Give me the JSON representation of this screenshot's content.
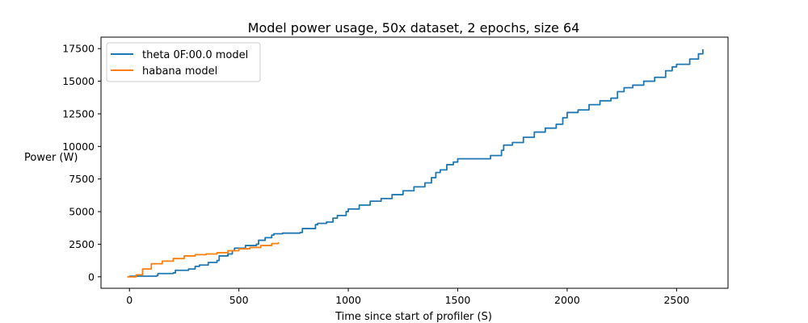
{
  "chart_data": {
    "type": "line",
    "title": "Model power usage, 50x dataset, 2 epochs, size 64",
    "xlabel": "Time since start of profiler (S)",
    "ylabel": "Power (W)",
    "xlim": [
      -130,
      2735
    ],
    "ylim": [
      -880,
      18380
    ],
    "xticks": [
      0,
      500,
      1000,
      1500,
      2000,
      2500
    ],
    "yticks": [
      0,
      2500,
      5000,
      7500,
      10000,
      12500,
      15000,
      17500
    ],
    "legend_position": "upper-left",
    "series": [
      {
        "name": "theta 0F:00.0 model",
        "color": "#1f77b4",
        "x": [
          0,
          125,
          130,
          200,
          210,
          270,
          300,
          320,
          360,
          400,
          410,
          450,
          470,
          480,
          530,
          580,
          590,
          620,
          650,
          660,
          700,
          780,
          790,
          850,
          860,
          900,
          930,
          950,
          990,
          1000,
          1050,
          1100,
          1150,
          1200,
          1250,
          1300,
          1350,
          1380,
          1400,
          1420,
          1450,
          1480,
          1500,
          1520,
          1550,
          1650,
          1700,
          1710,
          1750,
          1800,
          1850,
          1900,
          1950,
          1980,
          2000,
          2050,
          2100,
          2150,
          2200,
          2230,
          2260,
          2300,
          2350,
          2400,
          2450,
          2480,
          2500,
          2560,
          2600,
          2620
        ],
        "y": [
          50,
          100,
          250,
          300,
          500,
          600,
          800,
          900,
          1100,
          1250,
          1600,
          1750,
          2000,
          2200,
          2400,
          2500,
          2800,
          3000,
          3200,
          3300,
          3350,
          3400,
          3700,
          4000,
          4100,
          4200,
          4500,
          4700,
          5000,
          5200,
          5500,
          5800,
          6000,
          6300,
          6600,
          6900,
          7200,
          7600,
          8000,
          8200,
          8600,
          8800,
          9050,
          9050,
          9050,
          9300,
          9700,
          10100,
          10300,
          10700,
          11100,
          11400,
          11700,
          12200,
          12600,
          12800,
          13200,
          13500,
          13700,
          14200,
          14500,
          14700,
          15000,
          15300,
          15800,
          16100,
          16300,
          16700,
          17100,
          17450
        ]
      },
      {
        "name": "habana model",
        "color": "#ff7f0e",
        "x": [
          -10,
          30,
          60,
          100,
          150,
          200,
          250,
          300,
          350,
          400,
          450,
          500,
          550,
          600,
          650,
          680
        ],
        "y": [
          0,
          150,
          600,
          1000,
          1200,
          1400,
          1600,
          1700,
          1750,
          1850,
          2000,
          2150,
          2250,
          2400,
          2550,
          2650
        ]
      }
    ]
  }
}
